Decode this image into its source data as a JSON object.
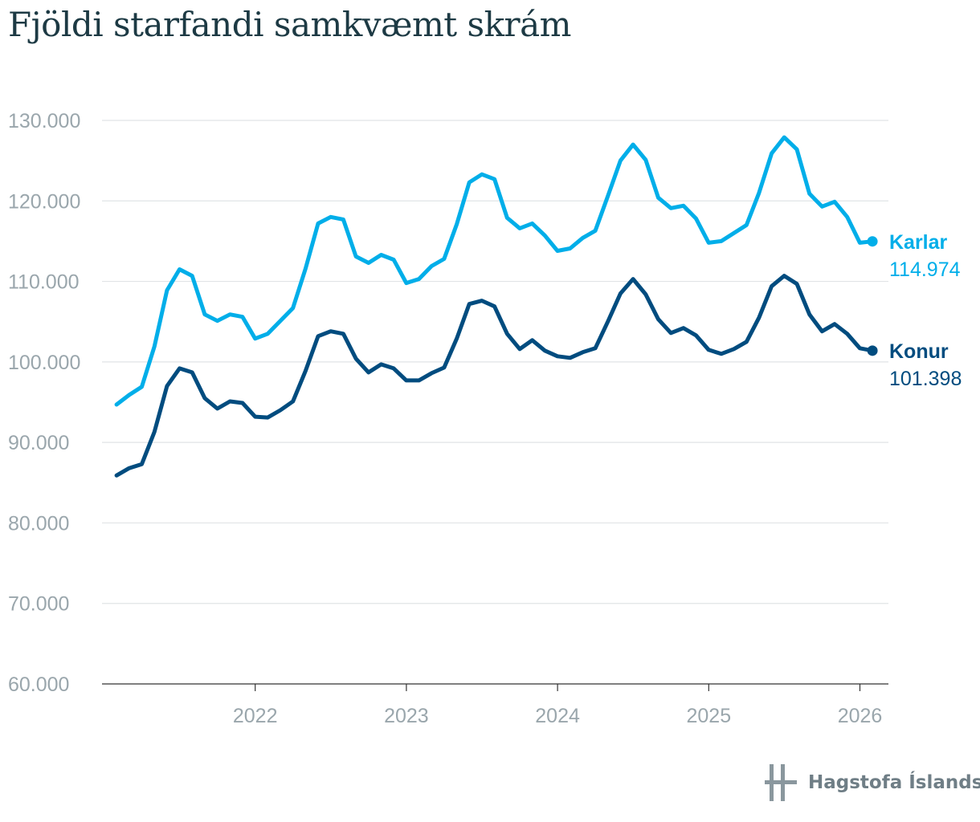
{
  "title": "Fjöldi starfandi samkvæmt skrám",
  "logo_text": "Hagstofa Íslands",
  "chart_data": {
    "type": "line",
    "title": "Fjöldi starfandi samkvæmt skrám",
    "xlabel": "",
    "ylabel": "",
    "ylim": [
      60000,
      130000
    ],
    "xlim": [
      2021.0,
      2026.2
    ],
    "y_ticks": [
      60000,
      70000,
      80000,
      90000,
      100000,
      110000,
      120000,
      130000
    ],
    "y_tick_labels": [
      "60.000",
      "70.000",
      "80.000",
      "90.000",
      "100.000",
      "110.000",
      "120.000",
      "130.000"
    ],
    "x_ticks": [
      2022,
      2023,
      2024,
      2025,
      2026
    ],
    "x_tick_labels": [
      "2022",
      "2023",
      "2024",
      "2025",
      "2026"
    ],
    "grid": true,
    "x_start": 2021.083,
    "x_step": 0.08333,
    "series": [
      {
        "name": "Karlar",
        "color": "#00aee9",
        "last_label": "114.974",
        "values": [
          94700,
          95900,
          96900,
          101900,
          108900,
          111500,
          110700,
          105900,
          105100,
          105900,
          105600,
          102900,
          103500,
          105100,
          106700,
          111600,
          117200,
          118000,
          117700,
          113100,
          112300,
          113300,
          112700,
          109800,
          110300,
          111900,
          112800,
          117100,
          122300,
          123300,
          122700,
          117900,
          116600,
          117200,
          115700,
          113800,
          114100,
          115400,
          116300,
          120600,
          125000,
          127000,
          125100,
          120400,
          119100,
          119400,
          117800,
          114800,
          115000,
          116000,
          117000,
          121000,
          125900,
          127900,
          126400,
          120900,
          119300,
          119900,
          118000,
          114800,
          114974
        ]
      },
      {
        "name": "Konur",
        "color": "#004c7f",
        "last_label": "101.398",
        "values": [
          85900,
          86800,
          87300,
          91300,
          97000,
          99200,
          98700,
          95500,
          94200,
          95100,
          94900,
          93200,
          93100,
          94000,
          95100,
          98900,
          103200,
          103800,
          103500,
          100400,
          98700,
          99700,
          99200,
          97700,
          97700,
          98600,
          99300,
          102900,
          107200,
          107600,
          106900,
          103500,
          101600,
          102700,
          101400,
          100700,
          100500,
          101200,
          101700,
          105000,
          108500,
          110300,
          108400,
          105300,
          103600,
          104200,
          103300,
          101500,
          101000,
          101600,
          102500,
          105500,
          109400,
          110700,
          109700,
          105900,
          103800,
          104700,
          103500,
          101700,
          101398
        ]
      }
    ]
  }
}
